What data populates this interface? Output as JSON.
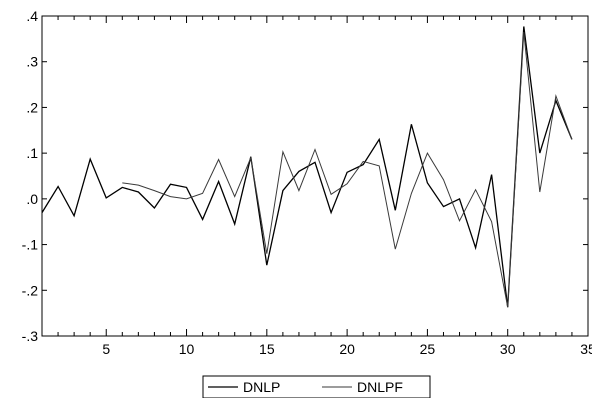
{
  "chart_data": {
    "type": "line",
    "title": "",
    "xlabel": "",
    "ylabel": "",
    "xlim": [
      1,
      35
    ],
    "ylim": [
      -0.3,
      0.4
    ],
    "x_ticks": [
      5,
      10,
      15,
      20,
      25,
      30,
      35
    ],
    "x_tick_labels": [
      "5",
      "10",
      "15",
      "20",
      "25",
      "30",
      "35"
    ],
    "y_ticks": [
      -0.3,
      -0.2,
      -0.1,
      0.0,
      0.1,
      0.2,
      0.3,
      0.4
    ],
    "y_tick_labels": [
      "-.3",
      "-.2",
      "-.1",
      ".0",
      ".1",
      ".2",
      ".3",
      ".4"
    ],
    "grid": false,
    "legend_position": "bottom-center",
    "series": [
      {
        "name": "DNLP",
        "color": "#000000",
        "x": [
          1,
          2,
          3,
          4,
          5,
          6,
          7,
          8,
          9,
          10,
          11,
          12,
          13,
          14,
          15,
          16,
          17,
          18,
          19,
          20,
          21,
          22,
          23,
          24,
          25,
          26,
          27,
          28,
          29,
          30,
          31,
          32,
          33,
          34
        ],
        "values": [
          -0.03,
          0.027,
          -0.037,
          0.087,
          0.002,
          0.025,
          0.015,
          -0.02,
          0.032,
          0.025,
          -0.045,
          0.038,
          -0.055,
          0.092,
          -0.145,
          0.018,
          0.06,
          0.08,
          -0.03,
          0.058,
          0.075,
          0.13,
          -0.025,
          0.163,
          0.035,
          -0.017,
          0.0,
          -0.107,
          0.053,
          -0.237,
          0.377,
          0.1,
          0.215,
          0.13
        ]
      },
      {
        "name": "DNLPF",
        "color": "#3a3a3a",
        "x": [
          6,
          7,
          8,
          9,
          10,
          11,
          12,
          13,
          14,
          15,
          16,
          17,
          18,
          19,
          20,
          21,
          22,
          23,
          24,
          25,
          26,
          27,
          28,
          29,
          30,
          31,
          32,
          33,
          34
        ],
        "values": [
          0.035,
          0.03,
          0.018,
          0.005,
          0.0,
          0.012,
          0.086,
          0.005,
          0.09,
          -0.12,
          0.103,
          0.018,
          0.108,
          0.01,
          0.033,
          0.082,
          0.072,
          -0.11,
          0.012,
          0.1,
          0.042,
          -0.048,
          0.02,
          -0.05,
          -0.237,
          0.365,
          0.015,
          0.225,
          0.13
        ]
      }
    ]
  }
}
